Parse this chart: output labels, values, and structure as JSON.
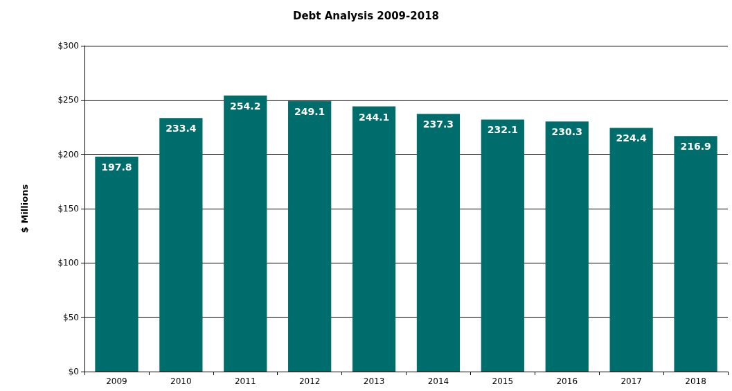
{
  "chart_data": {
    "type": "bar",
    "title": "Debt Analysis 2009-2018",
    "ylabel": "$ Millions",
    "categories": [
      "2009",
      "2010",
      "2011",
      "2012",
      "2013",
      "2014",
      "2015",
      "2016",
      "2017",
      "2018"
    ],
    "values": [
      197.8,
      233.4,
      254.2,
      249.1,
      244.1,
      237.3,
      232.1,
      230.3,
      224.4,
      216.9
    ],
    "color": "#006d6d",
    "ylim": [
      0,
      300
    ],
    "yticks": [
      {
        "value": 0,
        "label": "$0"
      },
      {
        "value": 50,
        "label": "$50"
      },
      {
        "value": 100,
        "label": "$100"
      },
      {
        "value": 150,
        "label": "$150"
      },
      {
        "value": 200,
        "label": "$200"
      },
      {
        "value": 250,
        "label": "$250"
      },
      {
        "value": 300,
        "label": "$300"
      }
    ],
    "grid": "y",
    "data_labels": true
  }
}
